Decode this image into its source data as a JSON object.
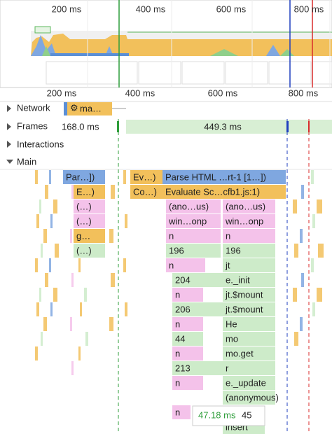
{
  "overview": {
    "ticks": [
      "200 ms",
      "400 ms",
      "600 ms",
      "800 ms"
    ]
  },
  "ruler": {
    "ticks": [
      "200 ms",
      "400 ms",
      "600 ms",
      "800 ms"
    ]
  },
  "tracks": {
    "network": {
      "label": "Network",
      "request": "ma…"
    },
    "frames": {
      "label": "Frames",
      "frame_1": "168.0 ms",
      "frame_2": "449.3 ms"
    },
    "interactions": {
      "label": "Interactions"
    },
    "main": {
      "label": "Main"
    }
  },
  "flame": [
    [
      "Par…])",
      "Ev…)",
      "Parse HTML …rt-1 [1…])"
    ],
    [
      "E…)",
      "Co…)",
      "Evaluate Sc…cfb1.js:1)"
    ],
    [
      "(…)",
      "(ano…us)",
      "(ano…us)"
    ],
    [
      "(…)",
      "win…onp",
      "win…onp"
    ],
    [
      "g…",
      "n",
      "n"
    ],
    [
      "(…)",
      "196",
      "196"
    ],
    [
      "n",
      "jt"
    ],
    [
      "204",
      "e._init"
    ],
    [
      "n",
      "jt.$mount"
    ],
    [
      "206",
      "jt.$mount"
    ],
    [
      "n",
      "He"
    ],
    [
      "44",
      "mo"
    ],
    [
      "n",
      "mo.get"
    ],
    [
      "213",
      "r"
    ],
    [
      "n",
      "e._update"
    ],
    [
      "(anonymous)"
    ],
    [
      "n"
    ],
    [
      "insert"
    ]
  ],
  "tooltip": {
    "duration": "47.18 ms",
    "name": "45"
  }
}
